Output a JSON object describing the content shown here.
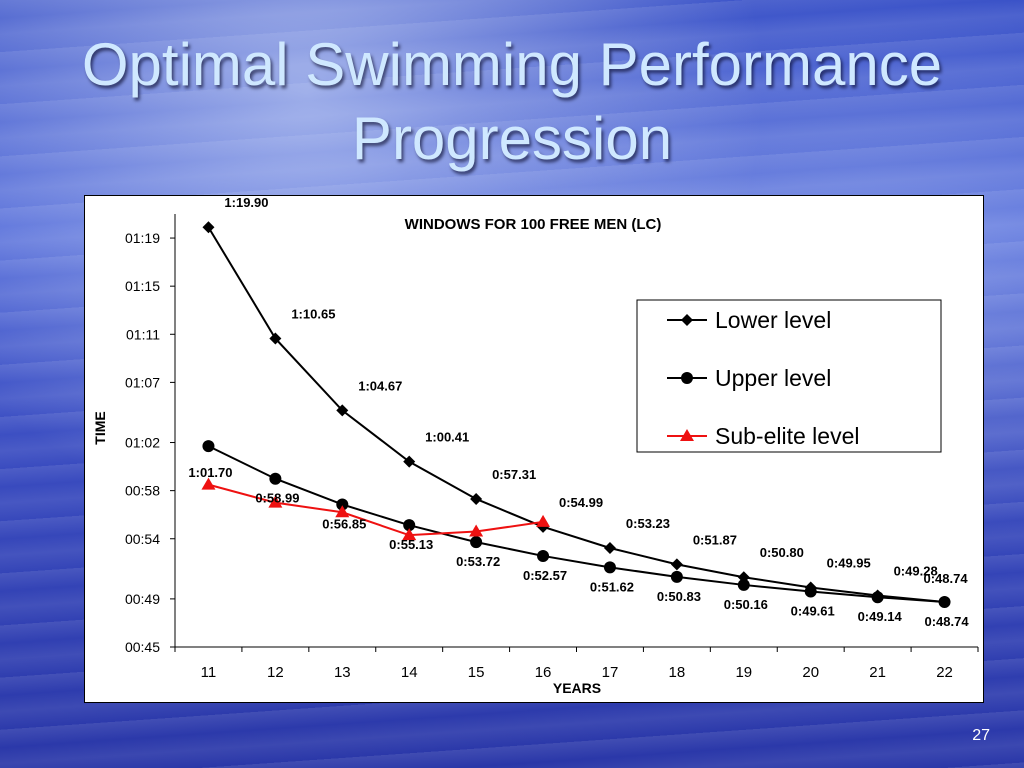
{
  "slide": {
    "title_line1": "Optimal Swimming Performance",
    "title_line2": "Progression",
    "page_number": "27"
  },
  "chart_data": {
    "type": "line",
    "title": "WINDOWS FOR 100 FREE MEN (LC)",
    "xlabel": "YEARS",
    "ylabel": "TIME",
    "x": [
      11,
      12,
      13,
      14,
      15,
      16,
      17,
      18,
      19,
      20,
      21,
      22
    ],
    "y_unit": "seconds",
    "ylim": [
      45,
      81
    ],
    "y_ticks": [
      {
        "value": 45,
        "label": "00:45"
      },
      {
        "value": 49,
        "label": "00:49"
      },
      {
        "value": 54,
        "label": "00:54"
      },
      {
        "value": 58,
        "label": "00:58"
      },
      {
        "value": 62,
        "label": "01:02"
      },
      {
        "value": 67,
        "label": "01:07"
      },
      {
        "value": 71,
        "label": "01:11"
      },
      {
        "value": 75,
        "label": "01:15"
      },
      {
        "value": 79,
        "label": "01:19"
      }
    ],
    "grid": false,
    "legend_position": "top-right",
    "series": [
      {
        "name": "Lower level",
        "marker": "diamond",
        "color": "#000000",
        "values": [
          79.9,
          70.65,
          64.67,
          60.41,
          57.31,
          54.99,
          53.23,
          51.87,
          50.8,
          49.95,
          49.28,
          48.74
        ],
        "labels": [
          "1:19.90",
          "1:10.65",
          "1:04.67",
          "1:00.41",
          "0:57.31",
          "0:54.99",
          "0:53.23",
          "0:51.87",
          "0:50.80",
          "0:49.95",
          "0:49.28",
          "0:48.74"
        ]
      },
      {
        "name": "Upper level",
        "marker": "circle",
        "color": "#000000",
        "values": [
          61.7,
          58.99,
          56.85,
          55.13,
          53.72,
          52.57,
          51.62,
          50.83,
          50.16,
          49.61,
          49.14,
          48.74
        ],
        "labels": [
          "1:01.70",
          "0:58.99",
          "0:56.85",
          "0:55.13",
          "0:53.72",
          "0:52.57",
          "0:51.62",
          "0:50.83",
          "0:50.16",
          "0:49.61",
          "0:49.14",
          "0:48.74"
        ]
      },
      {
        "name": "Sub-elite level",
        "marker": "triangle",
        "color": "#ee1111",
        "values": [
          58.5,
          57.0,
          56.2,
          54.3,
          54.6,
          55.4,
          null,
          null,
          null,
          null,
          null,
          null
        ],
        "labels": []
      }
    ]
  }
}
